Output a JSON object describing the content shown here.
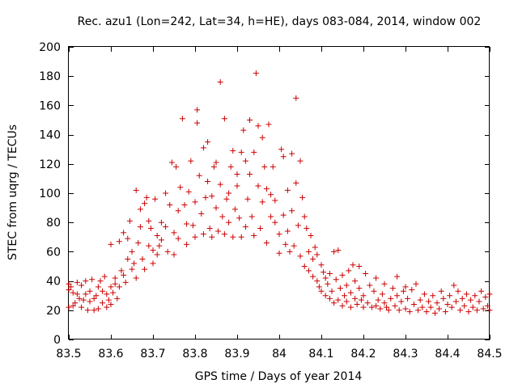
{
  "chart_data": {
    "type": "scatter",
    "title": "Rec. azu1 (Lon=242, Lat=34, h=HE), days 083-084, 2014, window 002",
    "xlabel": "GPS time / Days of year 2014",
    "ylabel": "STEC from uqrg / TECUs",
    "xlim": [
      83.5,
      84.5
    ],
    "ylim": [
      0,
      200
    ],
    "xticks": [
      83.5,
      83.6,
      83.7,
      83.8,
      83.9,
      84.0,
      84.1,
      84.2,
      84.3,
      84.4,
      84.5
    ],
    "xtick_labels": [
      "83.5",
      "83.6",
      "83.7",
      "83.8",
      "83.9",
      "84",
      "84.1",
      "84.2",
      "84.3",
      "84.4",
      "84.5"
    ],
    "yticks": [
      0,
      20,
      40,
      60,
      80,
      100,
      120,
      140,
      160,
      180,
      200
    ],
    "ytick_labels": [
      "0",
      "20",
      "40",
      "60",
      "80",
      "100",
      "120",
      "140",
      "160",
      "180",
      "200"
    ],
    "grid": false,
    "legend": "none",
    "marker": "plus",
    "marker_color": "#cc0000",
    "series": [
      {
        "name": "STEC",
        "points": [
          [
            83.5,
            22
          ],
          [
            83.5,
            34
          ],
          [
            83.5,
            38
          ],
          [
            83.505,
            36
          ],
          [
            83.51,
            23
          ],
          [
            83.51,
            32
          ],
          [
            83.515,
            25
          ],
          [
            83.52,
            39
          ],
          [
            83.52,
            31
          ],
          [
            83.525,
            28
          ],
          [
            83.53,
            22
          ],
          [
            83.53,
            37
          ],
          [
            83.535,
            27
          ],
          [
            83.54,
            31
          ],
          [
            83.54,
            40
          ],
          [
            83.545,
            20
          ],
          [
            83.55,
            26
          ],
          [
            83.55,
            33
          ],
          [
            83.555,
            41
          ],
          [
            83.56,
            20
          ],
          [
            83.56,
            28
          ],
          [
            83.565,
            30
          ],
          [
            83.57,
            21
          ],
          [
            83.57,
            36
          ],
          [
            83.575,
            40
          ],
          [
            83.58,
            25
          ],
          [
            83.58,
            33
          ],
          [
            83.585,
            43
          ],
          [
            83.59,
            22
          ],
          [
            83.59,
            31
          ],
          [
            83.595,
            27
          ],
          [
            83.6,
            24
          ],
          [
            83.6,
            36
          ],
          [
            83.6,
            65
          ],
          [
            83.605,
            32
          ],
          [
            83.61,
            42
          ],
          [
            83.61,
            38
          ],
          [
            83.615,
            28
          ],
          [
            83.62,
            67
          ],
          [
            83.62,
            36
          ],
          [
            83.625,
            47
          ],
          [
            83.63,
            44
          ],
          [
            83.63,
            73
          ],
          [
            83.635,
            39
          ],
          [
            83.64,
            55
          ],
          [
            83.64,
            69
          ],
          [
            83.645,
            81
          ],
          [
            83.65,
            48
          ],
          [
            83.65,
            60
          ],
          [
            83.655,
            52
          ],
          [
            83.66,
            102
          ],
          [
            83.66,
            42
          ],
          [
            83.665,
            66
          ],
          [
            83.67,
            89
          ],
          [
            83.67,
            77
          ],
          [
            83.675,
            55
          ],
          [
            83.68,
            93
          ],
          [
            83.68,
            48
          ],
          [
            83.685,
            97
          ],
          [
            83.69,
            64
          ],
          [
            83.69,
            81
          ],
          [
            83.695,
            76
          ],
          [
            83.7,
            52
          ],
          [
            83.7,
            61
          ],
          [
            83.705,
            96
          ],
          [
            83.71,
            71
          ],
          [
            83.71,
            58
          ],
          [
            83.715,
            64
          ],
          [
            83.72,
            80
          ],
          [
            83.72,
            68
          ],
          [
            83.73,
            100
          ],
          [
            83.73,
            77
          ],
          [
            83.735,
            60
          ],
          [
            83.74,
            92
          ],
          [
            83.745,
            121
          ],
          [
            83.75,
            58
          ],
          [
            83.75,
            73
          ],
          [
            83.755,
            118
          ],
          [
            83.76,
            69
          ],
          [
            83.76,
            88
          ],
          [
            83.765,
            104
          ],
          [
            83.77,
            151
          ],
          [
            83.775,
            92
          ],
          [
            83.78,
            65
          ],
          [
            83.78,
            79
          ],
          [
            83.785,
            101
          ],
          [
            83.79,
            122
          ],
          [
            83.795,
            78
          ],
          [
            83.8,
            70
          ],
          [
            83.8,
            94
          ],
          [
            83.805,
            157
          ],
          [
            83.805,
            148
          ],
          [
            83.81,
            112
          ],
          [
            83.815,
            86
          ],
          [
            83.82,
            72
          ],
          [
            83.82,
            131
          ],
          [
            83.825,
            97
          ],
          [
            83.83,
            135
          ],
          [
            83.83,
            108
          ],
          [
            83.835,
            76
          ],
          [
            83.84,
            70
          ],
          [
            83.84,
            98
          ],
          [
            83.845,
            118
          ],
          [
            83.85,
            121
          ],
          [
            83.85,
            90
          ],
          [
            83.855,
            74
          ],
          [
            83.86,
            176
          ],
          [
            83.86,
            106
          ],
          [
            83.865,
            84
          ],
          [
            83.87,
            72
          ],
          [
            83.87,
            151
          ],
          [
            83.875,
            96
          ],
          [
            83.88,
            80
          ],
          [
            83.88,
            100
          ],
          [
            83.885,
            118
          ],
          [
            83.89,
            129
          ],
          [
            83.89,
            70
          ],
          [
            83.895,
            89
          ],
          [
            83.9,
            105
          ],
          [
            83.9,
            113
          ],
          [
            83.905,
            83
          ],
          [
            83.91,
            70
          ],
          [
            83.91,
            128
          ],
          [
            83.915,
            143
          ],
          [
            83.92,
            122
          ],
          [
            83.92,
            77
          ],
          [
            83.925,
            96
          ],
          [
            83.93,
            150
          ],
          [
            83.93,
            113
          ],
          [
            83.935,
            84
          ],
          [
            83.94,
            71
          ],
          [
            83.94,
            128
          ],
          [
            83.945,
            182
          ],
          [
            83.95,
            146
          ],
          [
            83.95,
            105
          ],
          [
            83.955,
            76
          ],
          [
            83.96,
            138
          ],
          [
            83.96,
            94
          ],
          [
            83.965,
            118
          ],
          [
            83.97,
            66
          ],
          [
            83.97,
            103
          ],
          [
            83.975,
            147
          ],
          [
            83.98,
            84
          ],
          [
            83.98,
            99
          ],
          [
            83.985,
            118
          ],
          [
            83.99,
            80
          ],
          [
            83.99,
            95
          ],
          [
            84.0,
            72
          ],
          [
            84.0,
            59
          ],
          [
            84.005,
            130
          ],
          [
            84.01,
            125
          ],
          [
            84.01,
            85
          ],
          [
            84.015,
            65
          ],
          [
            84.02,
            74
          ],
          [
            84.02,
            102
          ],
          [
            84.025,
            60
          ],
          [
            84.03,
            127
          ],
          [
            84.03,
            88
          ],
          [
            84.035,
            64
          ],
          [
            84.04,
            165
          ],
          [
            84.04,
            107
          ],
          [
            84.045,
            78
          ],
          [
            84.05,
            122
          ],
          [
            84.05,
            57
          ],
          [
            84.055,
            97
          ],
          [
            84.06,
            84
          ],
          [
            84.06,
            50
          ],
          [
            84.065,
            76
          ],
          [
            84.07,
            60
          ],
          [
            84.07,
            47
          ],
          [
            84.075,
            71
          ],
          [
            84.08,
            55
          ],
          [
            84.08,
            43
          ],
          [
            84.085,
            63
          ],
          [
            84.09,
            40
          ],
          [
            84.09,
            58
          ],
          [
            84.095,
            36
          ],
          [
            84.1,
            51
          ],
          [
            84.1,
            33
          ],
          [
            84.105,
            46
          ],
          [
            84.11,
            30
          ],
          [
            84.11,
            42
          ],
          [
            84.115,
            38
          ],
          [
            84.12,
            28
          ],
          [
            84.12,
            45
          ],
          [
            84.125,
            33
          ],
          [
            84.13,
            60
          ],
          [
            84.13,
            25
          ],
          [
            84.135,
            41
          ],
          [
            84.14,
            27
          ],
          [
            84.14,
            61
          ],
          [
            84.145,
            35
          ],
          [
            84.15,
            23
          ],
          [
            84.15,
            44
          ],
          [
            84.155,
            30
          ],
          [
            84.16,
            26
          ],
          [
            84.16,
            37
          ],
          [
            84.165,
            47
          ],
          [
            84.17,
            22
          ],
          [
            84.17,
            32
          ],
          [
            84.175,
            51
          ],
          [
            84.18,
            28
          ],
          [
            84.18,
            40
          ],
          [
            84.185,
            24
          ],
          [
            84.19,
            35
          ],
          [
            84.19,
            50
          ],
          [
            84.195,
            27
          ],
          [
            84.2,
            22
          ],
          [
            84.2,
            30
          ],
          [
            84.205,
            45
          ],
          [
            84.21,
            25
          ],
          [
            84.215,
            37
          ],
          [
            84.22,
            22
          ],
          [
            84.225,
            33
          ],
          [
            84.23,
            42
          ],
          [
            84.23,
            23
          ],
          [
            84.235,
            27
          ],
          [
            84.24,
            21
          ],
          [
            84.245,
            31
          ],
          [
            84.25,
            25
          ],
          [
            84.25,
            38
          ],
          [
            84.255,
            22
          ],
          [
            84.26,
            20
          ],
          [
            84.265,
            28
          ],
          [
            84.27,
            35
          ],
          [
            84.275,
            23
          ],
          [
            84.28,
            43
          ],
          [
            84.28,
            30
          ],
          [
            84.285,
            20
          ],
          [
            84.29,
            26
          ],
          [
            84.295,
            33
          ],
          [
            84.3,
            21
          ],
          [
            84.3,
            36
          ],
          [
            84.305,
            28
          ],
          [
            84.31,
            19
          ],
          [
            84.315,
            34
          ],
          [
            84.32,
            24
          ],
          [
            84.325,
            38
          ],
          [
            84.33,
            20
          ],
          [
            84.335,
            27
          ],
          [
            84.34,
            22
          ],
          [
            84.345,
            31
          ],
          [
            84.35,
            19
          ],
          [
            84.355,
            26
          ],
          [
            84.36,
            22
          ],
          [
            84.365,
            30
          ],
          [
            84.37,
            18
          ],
          [
            84.375,
            25
          ],
          [
            84.38,
            21
          ],
          [
            84.385,
            33
          ],
          [
            84.39,
            28
          ],
          [
            84.395,
            19
          ],
          [
            84.4,
            24
          ],
          [
            84.405,
            30
          ],
          [
            84.41,
            22
          ],
          [
            84.415,
            37
          ],
          [
            84.42,
            26
          ],
          [
            84.425,
            33
          ],
          [
            84.43,
            20
          ],
          [
            84.435,
            28
          ],
          [
            84.44,
            23
          ],
          [
            84.445,
            31
          ],
          [
            84.45,
            19
          ],
          [
            84.455,
            27
          ],
          [
            84.46,
            22
          ],
          [
            84.465,
            30
          ],
          [
            84.47,
            20
          ],
          [
            84.475,
            26
          ],
          [
            84.48,
            33
          ],
          [
            84.485,
            21
          ],
          [
            84.49,
            29
          ],
          [
            84.495,
            23
          ],
          [
            84.5,
            20
          ],
          [
            84.5,
            31
          ]
        ]
      }
    ]
  }
}
